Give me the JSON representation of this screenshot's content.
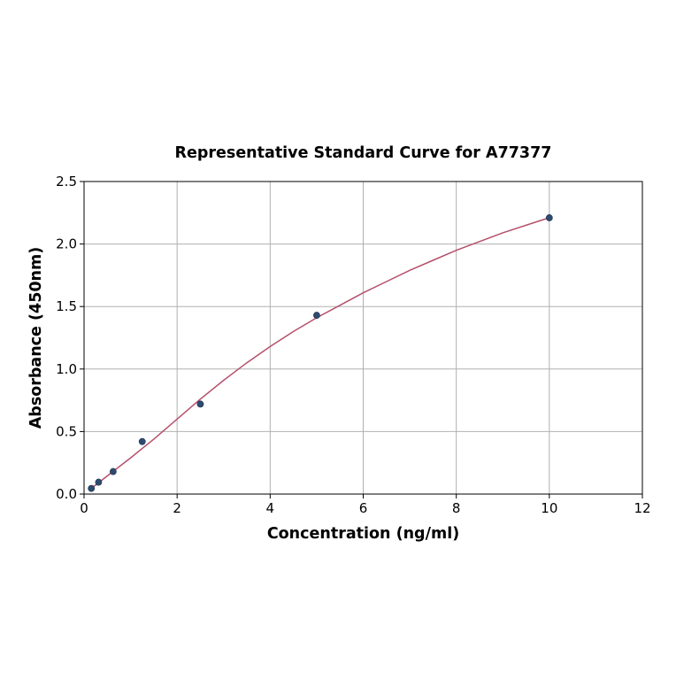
{
  "chart_data": {
    "type": "scatter",
    "title": "Representative Standard Curve for A77377",
    "xlabel": "Concentration (ng/ml)",
    "ylabel": "Absorbance (450nm)",
    "xlim": [
      0,
      12
    ],
    "ylim": [
      0,
      2.5
    ],
    "x_ticks": [
      0,
      2,
      4,
      6,
      8,
      10,
      12
    ],
    "y_ticks": [
      0.0,
      0.5,
      1.0,
      1.5,
      2.0,
      2.5
    ],
    "x_tick_labels": [
      "0",
      "2",
      "4",
      "6",
      "8",
      "10",
      "12"
    ],
    "y_tick_labels": [
      "0.0",
      "0.5",
      "1.0",
      "1.5",
      "2.0",
      "2.5"
    ],
    "grid": true,
    "series": [
      {
        "type": "scatter",
        "x": [
          0.156,
          0.312,
          0.625,
          1.25,
          2.5,
          5,
          10
        ],
        "y": [
          0.045,
          0.095,
          0.18,
          0.42,
          0.72,
          1.43,
          2.21
        ],
        "color": "#2e4a6e"
      },
      {
        "type": "line",
        "x": [
          0.156,
          0.5,
          1,
          1.5,
          2,
          2.5,
          3,
          3.5,
          4,
          4.5,
          5,
          5.5,
          6,
          6.5,
          7,
          7.5,
          8,
          8.5,
          9,
          9.5,
          10
        ],
        "y": [
          0.045,
          0.145,
          0.29,
          0.44,
          0.6,
          0.76,
          0.91,
          1.05,
          1.18,
          1.3,
          1.41,
          1.51,
          1.61,
          1.7,
          1.79,
          1.87,
          1.95,
          2.02,
          2.09,
          2.15,
          2.21
        ],
        "color": "#b5506a"
      }
    ]
  }
}
